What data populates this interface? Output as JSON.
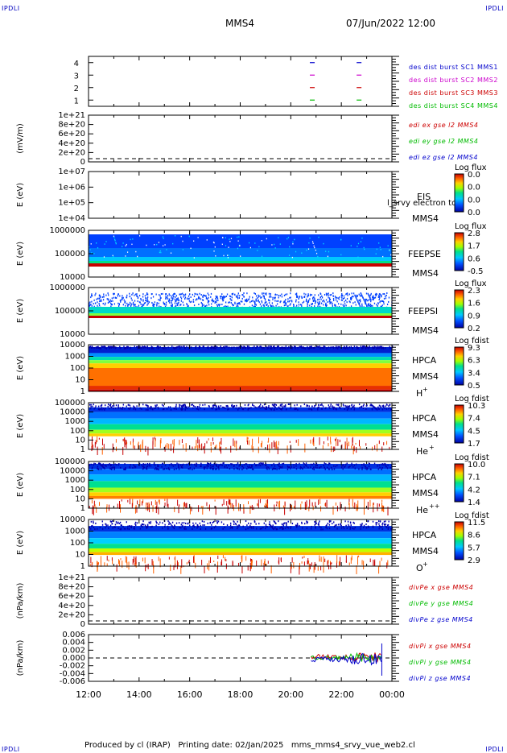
{
  "corners": {
    "tl": "IPDLI",
    "tr": "IPDLI",
    "bl": "IPDLI",
    "br": "IPDLI"
  },
  "header": {
    "spacecraft": "MMS4",
    "datetime": "07/Jun/2022 12:00"
  },
  "footer": {
    "text": "Produced by cl (IRAP)   Printing date: 02/Jan/2025   mms_mms4_srvy_vue_web2.cl"
  },
  "colors": {
    "blue": "#0000cc",
    "magenta": "#cc00cc",
    "red": "#cc0000",
    "green": "#00bb00"
  },
  "chart_data": [
    {
      "type": "scatter",
      "id": "burst",
      "x_unit": "hours",
      "xlim": [
        12,
        24
      ],
      "yticks": [
        "1",
        "2",
        "3",
        "4"
      ],
      "ylim": [
        0.5,
        4.5
      ],
      "series": [
        {
          "name": "des dist burst SC1 MMS1",
          "color": "#0000cc",
          "y": 4,
          "x": [
            20.85,
            22.7
          ]
        },
        {
          "name": "des dist burst SC2 MMS2",
          "color": "#cc00cc",
          "y": 3,
          "x": [
            20.85,
            22.7
          ]
        },
        {
          "name": "des dist burst SC3 MMS3",
          "color": "#cc0000",
          "y": 2,
          "x": [
            20.85,
            22.7
          ]
        },
        {
          "name": "des dist burst SC4 MMS4",
          "color": "#00bb00",
          "y": 1,
          "x": [
            20.85,
            22.7
          ]
        }
      ]
    },
    {
      "type": "line",
      "id": "edi",
      "ylabel": "(mV/m)",
      "yticks": [
        "1e+21",
        "8e+20",
        "6e+20",
        "4e+20",
        "2e+20",
        "0"
      ],
      "legend": [
        {
          "name": "edi ex gse l2 MMS4",
          "color": "#cc0000"
        },
        {
          "name": "edi ey gse l2 MMS4",
          "color": "#00bb00"
        },
        {
          "name": "edi ez gse l2 MMS4",
          "color": "#0000cc"
        }
      ]
    },
    {
      "type": "heatmap",
      "id": "eis",
      "ylabel": "E (eV)",
      "yticks": [
        "1e+07",
        "1e+06",
        "1e+05",
        "1e+04"
      ],
      "instrument": "EIS",
      "craft": "MMS4",
      "overlay": "l_srvy electron to",
      "cbar_title": "Log flux",
      "cbar_ticks": [
        "0.0",
        "0.0",
        "0.0",
        "0.0"
      ]
    },
    {
      "type": "heatmap",
      "id": "feepse",
      "ylabel": "E (eV)",
      "yticks": [
        "1000000",
        "100000",
        "10000"
      ],
      "instrument": "FEEPSE",
      "craft": "MMS4",
      "cbar_title": "Log flux",
      "cbar_ticks": [
        "2.8",
        "1.7",
        "0.6",
        "-0.5"
      ]
    },
    {
      "type": "heatmap",
      "id": "feepsi",
      "ylabel": "E (eV)",
      "yticks": [
        "1000000",
        "100000",
        "10000"
      ],
      "instrument": "FEEPSI",
      "craft": "MMS4",
      "cbar_title": "Log flux",
      "cbar_ticks": [
        "2.3",
        "1.6",
        "0.9",
        "0.2"
      ]
    },
    {
      "type": "heatmap",
      "id": "hpca_h",
      "ylabel": "E (eV)",
      "yticks": [
        "10000",
        "1000",
        "100",
        "10",
        "1"
      ],
      "instrument": "HPCA",
      "craft": "MMS4",
      "species": "H",
      "charge": "+",
      "cbar_title": "Log fdist",
      "cbar_ticks": [
        "9.3",
        "6.3",
        "3.4",
        "0.5"
      ]
    },
    {
      "type": "heatmap",
      "id": "hpca_he",
      "ylabel": "E (eV)",
      "yticks": [
        "100000",
        "10000",
        "1000",
        "100",
        "10",
        "1"
      ],
      "instrument": "HPCA",
      "craft": "MMS4",
      "species": "He",
      "charge": "+",
      "cbar_title": "Log fdist",
      "cbar_ticks": [
        "10.3",
        "7.4",
        "4.5",
        "1.7"
      ]
    },
    {
      "type": "heatmap",
      "id": "hpca_he2",
      "ylabel": "E (eV)",
      "yticks": [
        "100000",
        "10000",
        "1000",
        "100",
        "10",
        "1"
      ],
      "instrument": "HPCA",
      "craft": "MMS4",
      "species": "He",
      "charge": "++",
      "cbar_title": "Log fdist",
      "cbar_ticks": [
        "10.0",
        "7.1",
        "4.2",
        "1.4"
      ]
    },
    {
      "type": "heatmap",
      "id": "hpca_o",
      "ylabel": "E (eV)",
      "yticks": [
        "10000",
        "1000",
        "100",
        "10",
        "1"
      ],
      "instrument": "HPCA",
      "craft": "MMS4",
      "species": "O",
      "charge": "+",
      "cbar_title": "Log fdist",
      "cbar_ticks": [
        "11.5",
        "8.6",
        "5.7",
        "2.9"
      ]
    },
    {
      "type": "line",
      "id": "divpe",
      "ylabel": "(nPa/km)",
      "yticks": [
        "1e+21",
        "8e+20",
        "6e+20",
        "4e+20",
        "2e+20",
        "0"
      ],
      "legend": [
        {
          "name": "divPe x gse MMS4",
          "color": "#cc0000"
        },
        {
          "name": "divPe y gse MMS4",
          "color": "#00bb00"
        },
        {
          "name": "divPe z gse MMS4",
          "color": "#0000cc"
        }
      ]
    },
    {
      "type": "line",
      "id": "divpi",
      "ylabel": "(nPa/km)",
      "yticks": [
        "0.006",
        "0.004",
        "0.002",
        "0.000",
        "-0.002",
        "-0.004",
        "-0.006"
      ],
      "ylim": [
        -0.007,
        0.007
      ],
      "x_unit": "hours",
      "data_xrange": [
        20.8,
        23.6
      ],
      "legend": [
        {
          "name": "divPi x gse MMS4",
          "color": "#cc0000"
        },
        {
          "name": "divPi y gse MMS4",
          "color": "#00bb00"
        },
        {
          "name": "divPi z gse MMS4",
          "color": "#0000cc"
        }
      ]
    }
  ],
  "xaxis": {
    "labels": [
      "12:00",
      "14:00",
      "16:00",
      "18:00",
      "20:00",
      "22:00",
      "00:00"
    ]
  }
}
